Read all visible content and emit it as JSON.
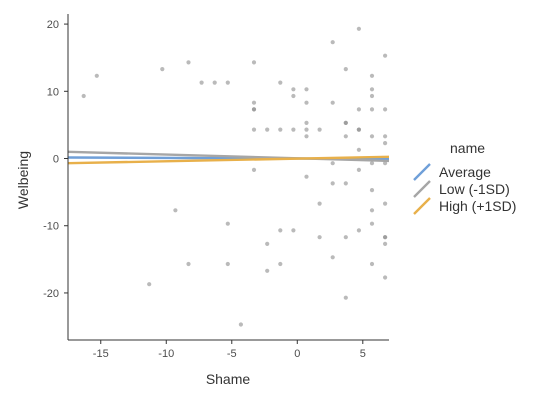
{
  "chart_data": {
    "type": "scatter",
    "xlabel": "Shame",
    "ylabel": "Welbeing",
    "xlim": [
      -17.5,
      7
    ],
    "ylim": [
      -27,
      21.5
    ],
    "xticks": [
      -15,
      -10,
      -5,
      0,
      5
    ],
    "yticks": [
      -20,
      -10,
      0,
      10,
      20
    ],
    "xtick_labels": [
      "-15",
      "-10",
      "-5",
      "0",
      "5"
    ],
    "ytick_labels": [
      "-20",
      "-10",
      "0",
      "10",
      "20"
    ],
    "grid": false,
    "legend_position": "right",
    "legend_title": "name",
    "points_color": "#8c8c8c",
    "points": [
      [
        -16.3,
        9.3
      ],
      [
        -15.3,
        12.3
      ],
      [
        -10.3,
        13.3
      ],
      [
        -11.3,
        -18.7
      ],
      [
        -9.3,
        -7.7
      ],
      [
        -8.3,
        14.3
      ],
      [
        -8.3,
        -15.7
      ],
      [
        -7.3,
        11.3
      ],
      [
        -6.3,
        11.3
      ],
      [
        -5.3,
        11.3
      ],
      [
        -5.3,
        -9.7
      ],
      [
        -5.3,
        -15.7
      ],
      [
        -4.3,
        -24.7
      ],
      [
        -3.3,
        14.3
      ],
      [
        -3.3,
        8.3
      ],
      [
        -3.3,
        7.3
      ],
      [
        -3.3,
        7.3
      ],
      [
        -3.3,
        4.3
      ],
      [
        -3.3,
        -1.7
      ],
      [
        -2.3,
        4.3
      ],
      [
        -2.3,
        -12.7
      ],
      [
        -2.3,
        -16.7
      ],
      [
        -1.3,
        11.3
      ],
      [
        -1.3,
        4.3
      ],
      [
        -1.3,
        -10.7
      ],
      [
        -1.3,
        -15.7
      ],
      [
        -0.3,
        10.3
      ],
      [
        -0.3,
        9.3
      ],
      [
        -0.3,
        4.3
      ],
      [
        -0.3,
        -10.7
      ],
      [
        0.7,
        10.3
      ],
      [
        0.7,
        8.3
      ],
      [
        0.7,
        5.3
      ],
      [
        0.7,
        4.3
      ],
      [
        0.7,
        3.3
      ],
      [
        0.7,
        -2.7
      ],
      [
        1.7,
        4.3
      ],
      [
        1.7,
        -6.7
      ],
      [
        1.7,
        -11.7
      ],
      [
        2.7,
        17.3
      ],
      [
        2.7,
        8.3
      ],
      [
        2.7,
        -0.7
      ],
      [
        2.7,
        -3.7
      ],
      [
        2.7,
        -14.7
      ],
      [
        3.7,
        13.3
      ],
      [
        3.7,
        5.3
      ],
      [
        3.7,
        5.3
      ],
      [
        3.7,
        3.3
      ],
      [
        3.7,
        -3.7
      ],
      [
        3.7,
        -11.7
      ],
      [
        3.7,
        -20.7
      ],
      [
        4.7,
        19.3
      ],
      [
        4.7,
        7.3
      ],
      [
        4.7,
        4.3
      ],
      [
        4.7,
        4.3
      ],
      [
        4.7,
        1.3
      ],
      [
        4.7,
        -1.7
      ],
      [
        4.7,
        -10.7
      ],
      [
        5.7,
        12.3
      ],
      [
        5.7,
        10.3
      ],
      [
        5.7,
        9.3
      ],
      [
        5.7,
        7.3
      ],
      [
        5.7,
        3.3
      ],
      [
        5.7,
        -0.7
      ],
      [
        5.7,
        -4.7
      ],
      [
        5.7,
        -7.7
      ],
      [
        5.7,
        -9.7
      ],
      [
        5.7,
        -15.7
      ],
      [
        6.7,
        15.3
      ],
      [
        6.7,
        7.3
      ],
      [
        6.7,
        3.3
      ],
      [
        6.7,
        2.3
      ],
      [
        6.7,
        -0.7
      ],
      [
        6.7,
        -6.7
      ],
      [
        6.7,
        -11.7
      ],
      [
        6.7,
        -11.7
      ],
      [
        6.7,
        -12.7
      ],
      [
        6.7,
        -17.7
      ]
    ],
    "series": [
      {
        "name": "Average",
        "color": "#6f9fd8",
        "x": [
          -17.5,
          7
        ],
        "y": [
          0.15,
          -0.05
        ]
      },
      {
        "name": "Low (-1SD)",
        "color": "#a6a6a6",
        "x": [
          -17.5,
          7
        ],
        "y": [
          1.0,
          -0.35
        ]
      },
      {
        "name": "High (+1SD)",
        "color": "#e8b04a",
        "x": [
          -17.5,
          7
        ],
        "y": [
          -0.7,
          0.25
        ]
      }
    ]
  }
}
